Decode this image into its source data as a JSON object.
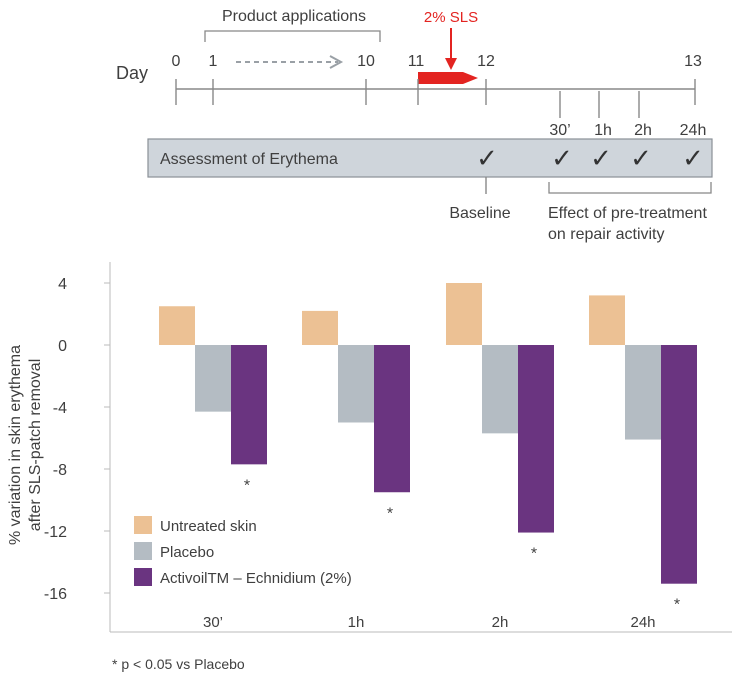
{
  "timeline": {
    "product_applications_label": "Product applications",
    "sls_label": "2% SLS",
    "day_label": "Day",
    "day_ticks": [
      "0",
      "1",
      "10",
      "11",
      "12",
      "13"
    ],
    "time_points": [
      "30’",
      "1h",
      "2h",
      "24h"
    ],
    "assessment_label": "Assessment of Erythema",
    "check_glyph": "✓",
    "baseline_label": "Baseline",
    "effect_label_line1": "Effect of pre-treatment",
    "effect_label_line2": "on repair activity",
    "colors": {
      "sls": "#e32421",
      "box_fill": "#cfd5db",
      "axis": "#888888"
    }
  },
  "chart_data": {
    "type": "bar",
    "categories": [
      "30’",
      "1h",
      "2h",
      "24h"
    ],
    "ylabel_line1": "% variation in skin erythema",
    "ylabel_line2": "after SLS-patch removal",
    "ylim": [
      -18,
      5.2
    ],
    "yticks": [
      4,
      0,
      -4,
      -8,
      -12,
      -16
    ],
    "series": [
      {
        "name": "Untreated skin",
        "color": "#ecc194",
        "values": [
          2.5,
          2.2,
          4.0,
          3.2
        ]
      },
      {
        "name": "Placebo",
        "color": "#b4bcc3",
        "values": [
          -4.3,
          -5.0,
          -5.7,
          -6.1
        ]
      },
      {
        "name": "ActivoilTM – Echnidium (2%)",
        "color": "#6a3480",
        "values": [
          -7.7,
          -9.5,
          -12.1,
          -15.4
        ]
      }
    ],
    "significance_marker": "*",
    "legend_position": "bottom-left",
    "footnote": "* p < 0.05 vs Placebo"
  }
}
